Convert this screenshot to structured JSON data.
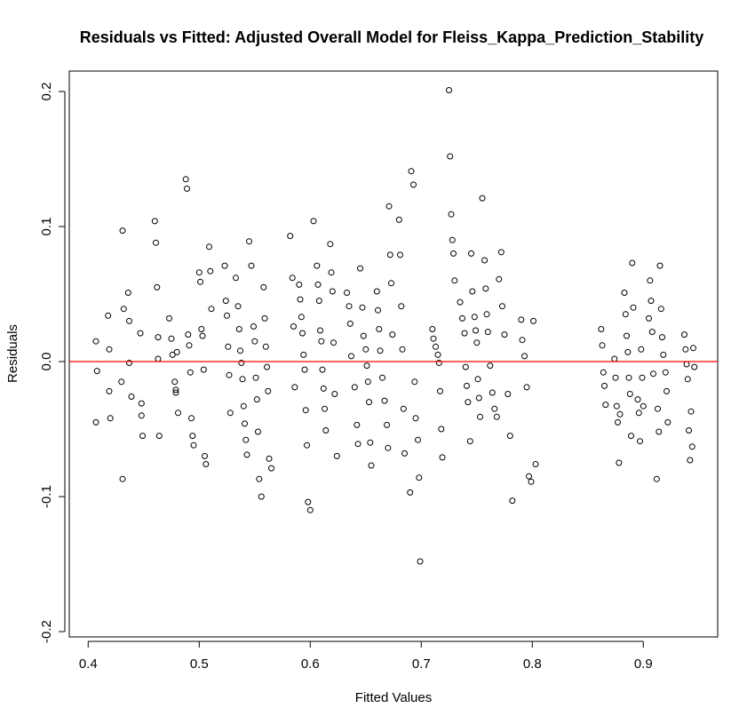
{
  "chart_data": {
    "type": "scatter",
    "title": "Residuals vs Fitted: Adjusted Overall Model for Fleiss_Kappa_Prediction_Stability",
    "xlabel": "Fitted Values",
    "ylabel": "Residuals",
    "xlim": [
      0.383,
      0.967
    ],
    "ylim": [
      -0.2,
      0.2
    ],
    "xticks": [
      0.4,
      0.5,
      0.6,
      0.7,
      0.8,
      0.9
    ],
    "yticks": [
      -0.2,
      -0.1,
      0.0,
      0.1,
      0.2
    ],
    "xtick_labels": [
      "0.4",
      "0.5",
      "0.6",
      "0.7",
      "0.8",
      "0.9"
    ],
    "ytick_labels": [
      "-0.2",
      "-0.1",
      "0.0",
      "0.1",
      "0.2"
    ],
    "grid": false,
    "legend": "none",
    "reference_line": {
      "y": 0.0,
      "color": "#ff0000"
    },
    "point_color": "#000000",
    "x": [
      0.407,
      0.408,
      0.407,
      0.418,
      0.419,
      0.419,
      0.42,
      0.431,
      0.432,
      0.43,
      0.431,
      0.436,
      0.437,
      0.437,
      0.439,
      0.447,
      0.448,
      0.448,
      0.449,
      0.46,
      0.461,
      0.462,
      0.463,
      0.463,
      0.464,
      0.473,
      0.475,
      0.476,
      0.478,
      0.479,
      0.479,
      0.48,
      0.481,
      0.488,
      0.489,
      0.49,
      0.491,
      0.492,
      0.493,
      0.494,
      0.495,
      0.5,
      0.501,
      0.502,
      0.503,
      0.504,
      0.505,
      0.506,
      0.509,
      0.51,
      0.511,
      0.523,
      0.524,
      0.525,
      0.526,
      0.527,
      0.528,
      0.533,
      0.535,
      0.536,
      0.537,
      0.538,
      0.539,
      0.54,
      0.541,
      0.542,
      0.543,
      0.545,
      0.547,
      0.549,
      0.55,
      0.551,
      0.552,
      0.553,
      0.554,
      0.556,
      0.558,
      0.559,
      0.56,
      0.561,
      0.562,
      0.563,
      0.565,
      0.582,
      0.584,
      0.585,
      0.586,
      0.59,
      0.591,
      0.592,
      0.593,
      0.594,
      0.595,
      0.596,
      0.597,
      0.598,
      0.6,
      0.603,
      0.606,
      0.607,
      0.608,
      0.609,
      0.61,
      0.611,
      0.612,
      0.613,
      0.614,
      0.618,
      0.619,
      0.62,
      0.621,
      0.622,
      0.624,
      0.633,
      0.635,
      0.636,
      0.637,
      0.64,
      0.642,
      0.643,
      0.645,
      0.647,
      0.648,
      0.65,
      0.651,
      0.652,
      0.653,
      0.654,
      0.655,
      0.66,
      0.661,
      0.662,
      0.663,
      0.665,
      0.667,
      0.669,
      0.67,
      0.671,
      0.672,
      0.673,
      0.674,
      0.68,
      0.681,
      0.682,
      0.683,
      0.684,
      0.685,
      0.69,
      0.691,
      0.693,
      0.694,
      0.695,
      0.697,
      0.698,
      0.699,
      0.71,
      0.711,
      0.713,
      0.715,
      0.716,
      0.717,
      0.718,
      0.719,
      0.725,
      0.726,
      0.727,
      0.728,
      0.729,
      0.73,
      0.735,
      0.737,
      0.739,
      0.74,
      0.741,
      0.742,
      0.744,
      0.745,
      0.746,
      0.748,
      0.749,
      0.75,
      0.751,
      0.752,
      0.753,
      0.755,
      0.757,
      0.758,
      0.759,
      0.76,
      0.762,
      0.764,
      0.766,
      0.768,
      0.77,
      0.772,
      0.773,
      0.775,
      0.778,
      0.78,
      0.782,
      0.79,
      0.791,
      0.793,
      0.795,
      0.797,
      0.799,
      0.801,
      0.803,
      0.862,
      0.863,
      0.864,
      0.865,
      0.866,
      0.874,
      0.875,
      0.876,
      0.877,
      0.878,
      0.879,
      0.883,
      0.884,
      0.885,
      0.886,
      0.887,
      0.888,
      0.889,
      0.89,
      0.891,
      0.895,
      0.896,
      0.897,
      0.898,
      0.899,
      0.9,
      0.905,
      0.906,
      0.907,
      0.908,
      0.909,
      0.912,
      0.913,
      0.914,
      0.915,
      0.916,
      0.917,
      0.918,
      0.92,
      0.921,
      0.922,
      0.937,
      0.938,
      0.939,
      0.94,
      0.941,
      0.942,
      0.943,
      0.944,
      0.945,
      0.946
    ],
    "y": [
      0.015,
      -0.007,
      -0.045,
      0.034,
      0.009,
      -0.022,
      -0.042,
      0.097,
      0.039,
      -0.015,
      -0.087,
      0.051,
      0.03,
      -0.001,
      -0.026,
      0.021,
      -0.031,
      -0.04,
      -0.055,
      0.104,
      0.088,
      0.055,
      0.018,
      0.002,
      -0.055,
      0.032,
      0.017,
      0.005,
      -0.015,
      -0.021,
      -0.023,
      0.007,
      -0.038,
      0.135,
      0.128,
      0.02,
      0.012,
      -0.008,
      -0.042,
      -0.055,
      -0.062,
      0.066,
      0.059,
      0.024,
      0.019,
      -0.006,
      -0.07,
      -0.076,
      0.085,
      0.067,
      0.039,
      0.071,
      0.045,
      0.034,
      0.011,
      -0.01,
      -0.038,
      0.062,
      0.041,
      0.024,
      0.008,
      -0.001,
      -0.013,
      -0.033,
      -0.046,
      -0.058,
      -0.069,
      0.089,
      0.071,
      0.026,
      0.015,
      -0.012,
      -0.028,
      -0.052,
      -0.087,
      -0.1,
      0.055,
      0.032,
      0.011,
      -0.004,
      -0.022,
      -0.072,
      -0.079,
      0.093,
      0.062,
      0.026,
      -0.019,
      0.057,
      0.046,
      0.033,
      0.021,
      0.005,
      -0.006,
      -0.036,
      -0.062,
      -0.104,
      -0.11,
      0.104,
      0.071,
      0.057,
      0.045,
      0.023,
      0.015,
      -0.006,
      -0.02,
      -0.035,
      -0.051,
      0.087,
      0.066,
      0.052,
      0.014,
      -0.024,
      -0.07,
      0.051,
      0.041,
      0.028,
      0.004,
      -0.019,
      -0.047,
      -0.061,
      0.069,
      0.04,
      0.019,
      0.009,
      -0.003,
      -0.015,
      -0.03,
      -0.06,
      -0.077,
      0.052,
      0.038,
      0.024,
      0.008,
      -0.012,
      -0.029,
      -0.047,
      -0.064,
      0.115,
      0.079,
      0.058,
      0.02,
      0.105,
      0.079,
      0.041,
      0.009,
      -0.035,
      -0.068,
      -0.097,
      0.141,
      0.131,
      -0.015,
      -0.042,
      -0.058,
      -0.086,
      -0.148,
      0.024,
      0.017,
      0.011,
      0.005,
      -0.001,
      -0.022,
      -0.05,
      -0.071,
      0.201,
      0.152,
      0.109,
      0.09,
      0.08,
      0.06,
      0.044,
      0.032,
      0.021,
      -0.004,
      -0.018,
      -0.03,
      -0.059,
      0.08,
      0.052,
      0.033,
      0.023,
      0.014,
      -0.013,
      -0.027,
      -0.041,
      0.121,
      0.075,
      0.054,
      0.035,
      0.022,
      -0.003,
      -0.023,
      -0.035,
      -0.041,
      0.061,
      0.081,
      0.041,
      0.02,
      -0.024,
      -0.055,
      -0.103,
      0.031,
      0.016,
      0.004,
      -0.019,
      -0.085,
      -0.089,
      0.03,
      -0.076,
      0.024,
      0.012,
      -0.008,
      -0.018,
      -0.032,
      0.002,
      -0.012,
      -0.033,
      -0.045,
      -0.075,
      -0.039,
      0.051,
      0.035,
      0.019,
      0.007,
      -0.012,
      -0.024,
      -0.055,
      0.073,
      0.04,
      -0.028,
      -0.038,
      -0.059,
      0.009,
      -0.012,
      -0.033,
      0.032,
      0.06,
      0.045,
      0.022,
      -0.009,
      -0.087,
      -0.035,
      -0.052,
      0.071,
      0.039,
      0.018,
      0.005,
      -0.008,
      -0.022,
      -0.045,
      0.02,
      0.009,
      -0.002,
      -0.013,
      -0.051,
      -0.073,
      -0.037,
      -0.063,
      0.01,
      -0.004
    ]
  }
}
